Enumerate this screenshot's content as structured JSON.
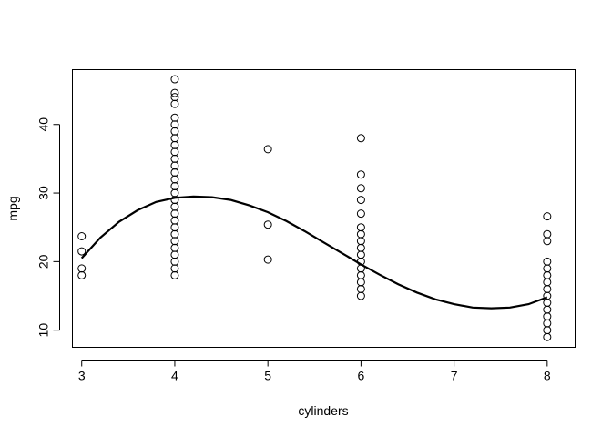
{
  "chart_data": {
    "type": "scatter",
    "title": "",
    "xlabel": "cylinders",
    "ylabel": "mpg",
    "xlim": [
      2.9,
      8.3
    ],
    "ylim": [
      7.5,
      48
    ],
    "xticks": [
      3,
      4,
      5,
      6,
      7,
      8
    ],
    "yticks": [
      10,
      20,
      30,
      40
    ],
    "grid": false,
    "legend": "none",
    "series": [
      {
        "type": "scatter",
        "points": [
          [
            3,
            18.0
          ],
          [
            3,
            19.0
          ],
          [
            3,
            21.5
          ],
          [
            3,
            23.7
          ],
          [
            4,
            18.0
          ],
          [
            4,
            19.0
          ],
          [
            4,
            20.0
          ],
          [
            4,
            21.0
          ],
          [
            4,
            22.0
          ],
          [
            4,
            23.0
          ],
          [
            4,
            24.0
          ],
          [
            4,
            25.0
          ],
          [
            4,
            26.0
          ],
          [
            4,
            27.0
          ],
          [
            4,
            28.0
          ],
          [
            4,
            29.0
          ],
          [
            4,
            30.0
          ],
          [
            4,
            31.0
          ],
          [
            4,
            32.0
          ],
          [
            4,
            33.0
          ],
          [
            4,
            34.0
          ],
          [
            4,
            35.0
          ],
          [
            4,
            36.0
          ],
          [
            4,
            37.0
          ],
          [
            4,
            38.0
          ],
          [
            4,
            39.0
          ],
          [
            4,
            40.0
          ],
          [
            4,
            41.0
          ],
          [
            4,
            43.0
          ],
          [
            4,
            44.0
          ],
          [
            4,
            44.6
          ],
          [
            4,
            46.6
          ],
          [
            5,
            20.3
          ],
          [
            5,
            25.4
          ],
          [
            5,
            36.4
          ],
          [
            6,
            15.0
          ],
          [
            6,
            16.0
          ],
          [
            6,
            17.0
          ],
          [
            6,
            18.0
          ],
          [
            6,
            19.0
          ],
          [
            6,
            20.0
          ],
          [
            6,
            21.0
          ],
          [
            6,
            22.0
          ],
          [
            6,
            23.0
          ],
          [
            6,
            24.0
          ],
          [
            6,
            25.0
          ],
          [
            6,
            27.0
          ],
          [
            6,
            29.0
          ],
          [
            6,
            30.7
          ],
          [
            6,
            32.7
          ],
          [
            6,
            38.0
          ],
          [
            8,
            9.0
          ],
          [
            8,
            10.0
          ],
          [
            8,
            11.0
          ],
          [
            8,
            12.0
          ],
          [
            8,
            13.0
          ],
          [
            8,
            14.0
          ],
          [
            8,
            15.0
          ],
          [
            8,
            16.0
          ],
          [
            8,
            17.0
          ],
          [
            8,
            18.0
          ],
          [
            8,
            19.0
          ],
          [
            8,
            20.0
          ],
          [
            8,
            23.0
          ],
          [
            8,
            24.0
          ],
          [
            8,
            26.6
          ]
        ]
      },
      {
        "type": "line",
        "x": [
          3.0,
          3.2,
          3.4,
          3.6,
          3.8,
          4.0,
          4.2,
          4.4,
          4.6,
          4.8,
          5.0,
          5.2,
          5.4,
          5.6,
          5.8,
          6.0,
          6.2,
          6.4,
          6.6,
          6.8,
          7.0,
          7.2,
          7.4,
          7.6,
          7.8,
          8.0
        ],
        "y": [
          20.5,
          23.5,
          25.8,
          27.5,
          28.7,
          29.3,
          29.5,
          29.4,
          29.0,
          28.2,
          27.2,
          25.9,
          24.4,
          22.8,
          21.2,
          19.6,
          18.1,
          16.7,
          15.5,
          14.5,
          13.8,
          13.3,
          13.2,
          13.3,
          13.8,
          14.8
        ]
      }
    ]
  }
}
